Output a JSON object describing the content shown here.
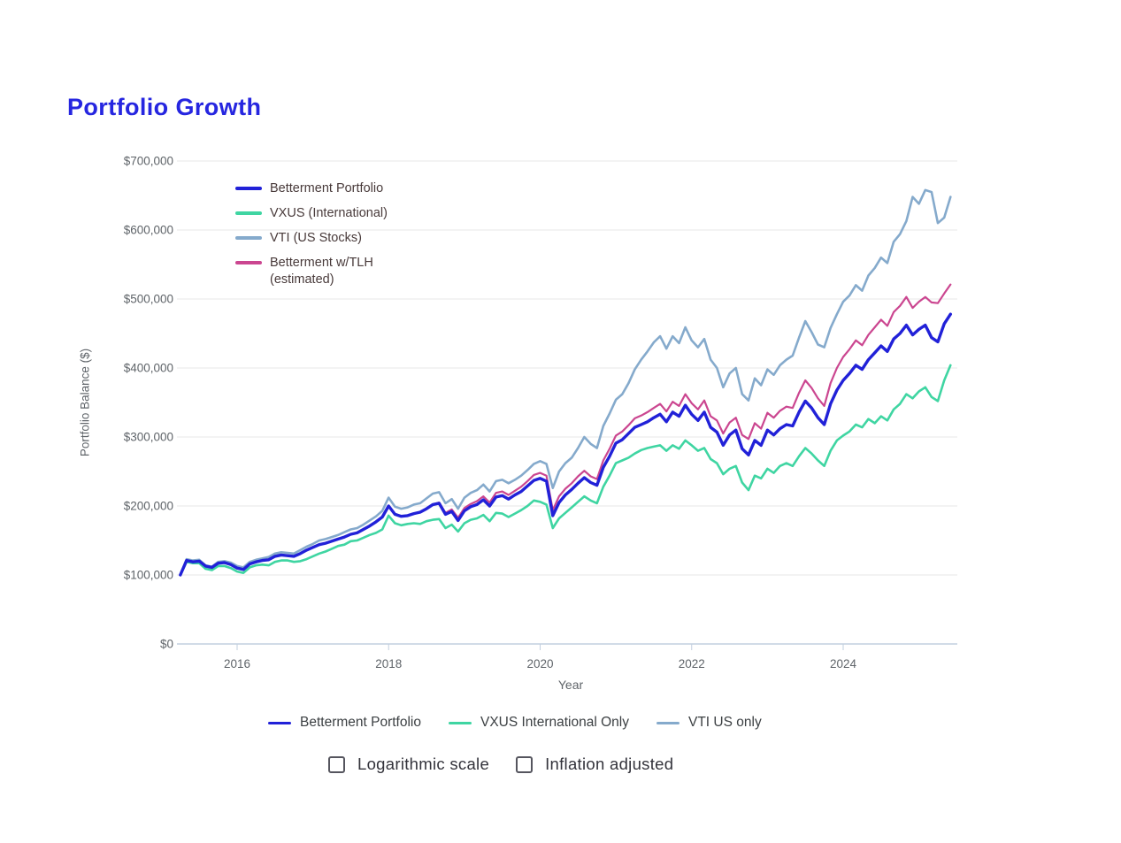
{
  "page": {
    "title": "Portfolio Growth"
  },
  "axes": {
    "ylabel": "Portfolio Balance ($)",
    "xlabel": "Year"
  },
  "chart_legend": {
    "items": [
      {
        "label": "Betterment Portfolio",
        "label2": "",
        "color": "#2121d8"
      },
      {
        "label": "VXUS (International)",
        "label2": "",
        "color": "#3fd5a2"
      },
      {
        "label": "VTI (US Stocks)",
        "label2": "",
        "color": "#85aacc"
      },
      {
        "label": "Betterment w/TLH",
        "label2": "(estimated)",
        "color": "#cb4690"
      }
    ]
  },
  "bottom_legend": {
    "items": [
      {
        "label": "Betterment Portfolio",
        "color": "#2121d8"
      },
      {
        "label": "VXUS International Only",
        "color": "#3fd5a2"
      },
      {
        "label": "VTI US only",
        "color": "#85aacc"
      }
    ]
  },
  "controls": {
    "items": [
      {
        "label": "Logarithmic scale",
        "checked": false
      },
      {
        "label": "Inflation adjusted",
        "checked": false
      }
    ]
  },
  "chart_data": {
    "type": "line",
    "title": "Portfolio Growth",
    "xlabel": "Year",
    "ylabel": "Portfolio Balance ($)",
    "xlim": [
      2015.2,
      2025.5
    ],
    "ylim": [
      0,
      700000
    ],
    "grid": true,
    "x_ticks": [
      2016,
      2018,
      2020,
      2022,
      2024
    ],
    "y_ticks": [
      {
        "label": "$0",
        "value": 0
      },
      {
        "label": "$100,000",
        "value": 100
      },
      {
        "label": "$200,000",
        "value": 200
      },
      {
        "label": "$300,000",
        "value": 300
      },
      {
        "label": "$400,000",
        "value": 400
      },
      {
        "label": "$500,000",
        "value": 500
      },
      {
        "label": "$600,000",
        "value": 600
      },
      {
        "label": "$700,000",
        "value": 700
      }
    ],
    "x_start_year": 2015.25,
    "x_step_years": 0.0833333,
    "units": "thousands of dollars",
    "draw_order": [
      2,
      1,
      3,
      0
    ],
    "series": [
      {
        "name": "Betterment Portfolio",
        "color": "#2121d8",
        "width": 3.4,
        "values_k": [
          100,
          121,
          119,
          120,
          113,
          111,
          117,
          118,
          115,
          110,
          108,
          116,
          119,
          121,
          122,
          127,
          129,
          128,
          127,
          131,
          136,
          140,
          144,
          146,
          149,
          152,
          155,
          159,
          161,
          166,
          171,
          177,
          184,
          200,
          188,
          185,
          186,
          189,
          191,
          196,
          202,
          204,
          188,
          192,
          179,
          193,
          199,
          202,
          209,
          200,
          213,
          215,
          210,
          216,
          221,
          229,
          237,
          240,
          236,
          186,
          205,
          216,
          224,
          233,
          241,
          234,
          230,
          256,
          272,
          291,
          296,
          305,
          314,
          318,
          322,
          328,
          333,
          322,
          336,
          330,
          346,
          333,
          324,
          336,
          314,
          307,
          288,
          303,
          310,
          283,
          274,
          295,
          288,
          310,
          303,
          312,
          318,
          316,
          336,
          352,
          342,
          328,
          318,
          348,
          368,
          382,
          392,
          404,
          398,
          412,
          422,
          432,
          424,
          442,
          450,
          462,
          448,
          456,
          462,
          444,
          438,
          464,
          478
        ]
      },
      {
        "name": "VXUS (International)",
        "color": "#3fd5a2",
        "width": 2.6,
        "values_k": [
          100,
          119,
          117,
          117,
          109,
          107,
          113,
          113,
          110,
          105,
          103,
          111,
          114,
          115,
          114,
          119,
          121,
          121,
          119,
          120,
          123,
          127,
          131,
          134,
          138,
          142,
          144,
          149,
          150,
          154,
          158,
          161,
          166,
          186,
          175,
          172,
          174,
          175,
          174,
          178,
          180,
          181,
          168,
          173,
          163,
          175,
          180,
          182,
          187,
          178,
          190,
          189,
          184,
          189,
          194,
          200,
          208,
          206,
          202,
          168,
          182,
          190,
          198,
          206,
          214,
          208,
          204,
          228,
          244,
          262,
          266,
          270,
          276,
          281,
          284,
          286,
          288,
          280,
          288,
          283,
          295,
          288,
          280,
          284,
          268,
          262,
          246,
          254,
          258,
          234,
          223,
          244,
          240,
          254,
          248,
          258,
          262,
          258,
          272,
          284,
          276,
          266,
          258,
          280,
          295,
          302,
          308,
          318,
          314,
          326,
          320,
          330,
          324,
          340,
          348,
          362,
          356,
          366,
          372,
          358,
          352,
          382,
          404
        ]
      },
      {
        "name": "VTI (US Stocks)",
        "color": "#85aacc",
        "width": 2.6,
        "values_k": [
          100,
          123,
          121,
          122,
          114,
          112,
          119,
          120,
          118,
          113,
          111,
          119,
          122,
          124,
          126,
          131,
          133,
          132,
          131,
          136,
          141,
          145,
          150,
          152,
          155,
          158,
          162,
          166,
          168,
          173,
          179,
          185,
          193,
          212,
          199,
          196,
          198,
          202,
          204,
          211,
          218,
          220,
          204,
          210,
          196,
          212,
          219,
          223,
          231,
          221,
          236,
          238,
          233,
          238,
          244,
          252,
          261,
          265,
          261,
          226,
          250,
          262,
          270,
          284,
          300,
          290,
          284,
          316,
          334,
          354,
          362,
          378,
          398,
          412,
          424,
          437,
          446,
          428,
          446,
          436,
          459,
          440,
          430,
          442,
          412,
          400,
          372,
          392,
          400,
          362,
          353,
          385,
          375,
          398,
          390,
          404,
          412,
          418,
          444,
          468,
          452,
          434,
          430,
          458,
          478,
          496,
          505,
          520,
          512,
          534,
          545,
          560,
          552,
          583,
          594,
          613,
          648,
          638,
          658,
          655,
          610,
          618,
          648
        ]
      },
      {
        "name": "Betterment w/TLH (estimated)",
        "color": "#cb4690",
        "width": 2.2,
        "values_k": [
          100,
          121,
          119,
          120,
          113,
          111,
          117,
          118,
          115,
          110,
          108,
          116,
          119,
          121,
          122,
          127,
          129,
          128,
          127,
          131,
          136,
          140,
          144,
          146,
          149,
          152,
          155,
          159,
          161,
          166,
          171,
          177,
          184,
          200,
          188,
          185,
          186,
          189,
          191,
          196,
          202,
          205,
          190,
          195,
          183,
          197,
          203,
          207,
          214,
          205,
          219,
          221,
          216,
          222,
          228,
          236,
          245,
          248,
          244,
          194,
          214,
          225,
          233,
          243,
          251,
          243,
          239,
          266,
          283,
          302,
          308,
          317,
          327,
          331,
          336,
          342,
          348,
          337,
          351,
          345,
          362,
          349,
          340,
          353,
          330,
          324,
          305,
          321,
          328,
          303,
          297,
          320,
          312,
          335,
          328,
          338,
          344,
          342,
          364,
          382,
          371,
          356,
          345,
          378,
          400,
          416,
          427,
          440,
          433,
          448,
          459,
          470,
          461,
          481,
          490,
          503,
          487,
          496,
          503,
          495,
          494,
          508,
          521
        ]
      }
    ]
  }
}
